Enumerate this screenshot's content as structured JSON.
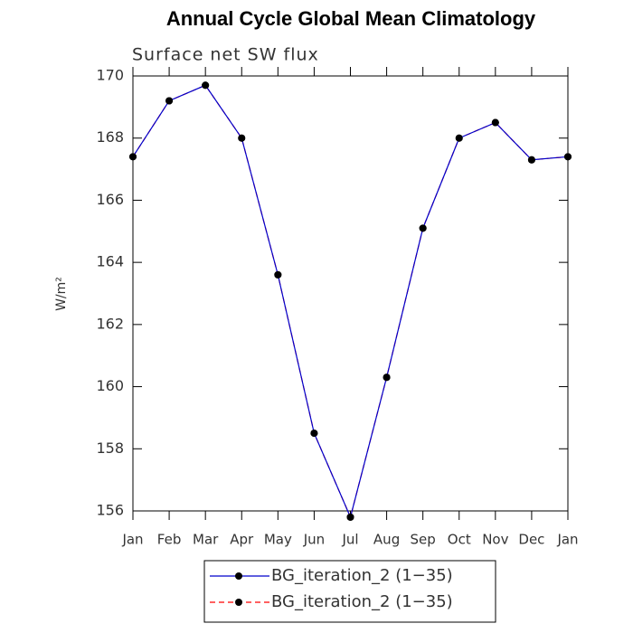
{
  "chart_data": {
    "type": "line",
    "title": "Annual Cycle Global Mean Climatology",
    "subtitle": "Surface net SW flux",
    "y_label": "W/m²",
    "categories": [
      "Jan",
      "Feb",
      "Mar",
      "Apr",
      "May",
      "Jun",
      "Jul",
      "Aug",
      "Sep",
      "Oct",
      "Nov",
      "Dec",
      "Jan"
    ],
    "series": [
      {
        "name": "BG_iteration_2 (1−35)",
        "color": "#ff0000",
        "dash": true,
        "values": [
          167.4,
          169.2,
          169.7,
          168.0,
          163.6,
          158.5,
          155.8,
          160.3,
          165.1,
          168.0,
          168.5,
          167.3,
          167.4
        ]
      },
      {
        "name": "BG_iteration_2 (1−35)",
        "color": "#0000cc",
        "dash": false,
        "values": [
          167.4,
          169.2,
          169.7,
          168.0,
          163.6,
          158.5,
          155.8,
          160.3,
          165.1,
          168.0,
          168.5,
          167.3,
          167.4
        ]
      }
    ],
    "marker_color": "#000000",
    "ylim": [
      156,
      170
    ],
    "yticks": [
      156,
      158,
      160,
      162,
      164,
      166,
      168,
      170
    ]
  }
}
